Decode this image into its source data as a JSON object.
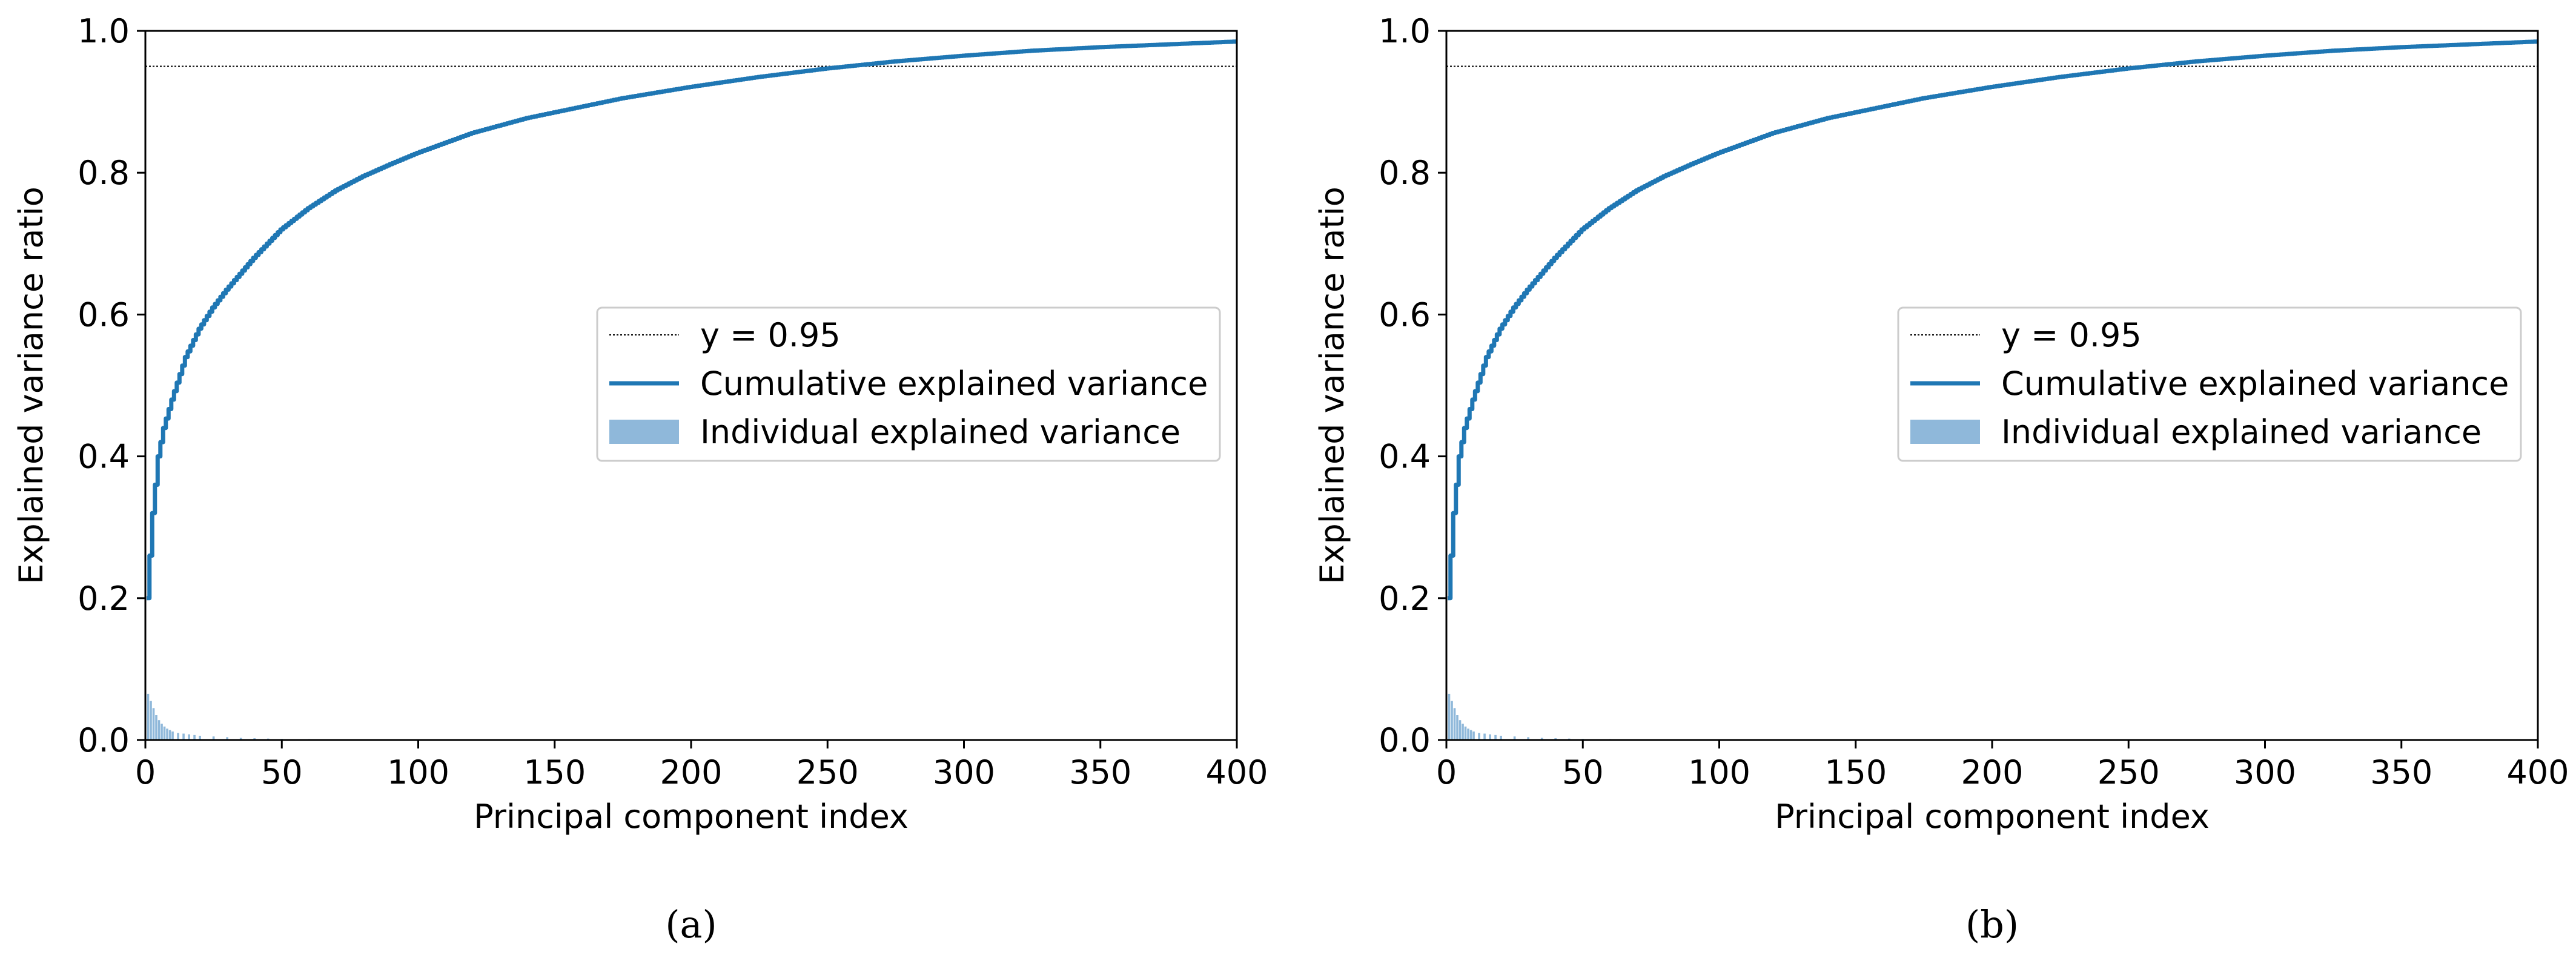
{
  "figure": {
    "panels": [
      {
        "caption": "(a)"
      },
      {
        "caption": "(b)"
      }
    ]
  },
  "colors": {
    "cumulative_line": "#1f77b4",
    "individual_bars": "#8fb8da",
    "threshold_line": "#000000"
  },
  "chart_data": [
    {
      "type": "line",
      "panel_label": "a",
      "title": "",
      "xlabel": "Principal component index",
      "ylabel": "Explained variance ratio",
      "xlim": [
        0,
        400
      ],
      "ylim": [
        0.0,
        1.0
      ],
      "x_ticks": [
        0,
        50,
        100,
        150,
        200,
        250,
        300,
        350,
        400
      ],
      "x_tick_labels": [
        "0",
        "50",
        "100",
        "150",
        "200",
        "250",
        "300",
        "350",
        "400"
      ],
      "y_ticks": [
        0.0,
        0.2,
        0.4,
        0.6,
        0.8,
        1.0
      ],
      "y_tick_labels": [
        "0.0",
        "0.2",
        "0.4",
        "0.6",
        "0.8",
        "1.0"
      ],
      "grid": false,
      "legend_position": "center-right",
      "legend": [
        "y = 0.95",
        "Cumulative explained variance",
        "Individual explained variance"
      ],
      "threshold": {
        "label": "y = 0.95",
        "y": 0.95
      },
      "series": [
        {
          "name": "Cumulative explained variance",
          "kind": "step-line",
          "x": [
            1,
            2,
            3,
            4,
            5,
            7,
            10,
            15,
            20,
            25,
            30,
            40,
            50,
            60,
            70,
            80,
            90,
            100,
            120,
            140,
            150,
            175,
            200,
            225,
            250,
            275,
            300,
            325,
            350,
            375,
            400
          ],
          "y": [
            0.2,
            0.26,
            0.32,
            0.36,
            0.4,
            0.44,
            0.48,
            0.54,
            0.58,
            0.61,
            0.635,
            0.68,
            0.72,
            0.75,
            0.775,
            0.795,
            0.812,
            0.828,
            0.856,
            0.877,
            0.885,
            0.905,
            0.921,
            0.935,
            0.947,
            0.957,
            0.965,
            0.972,
            0.977,
            0.981,
            0.985
          ]
        },
        {
          "name": "Individual explained variance",
          "kind": "bar",
          "x": [
            1,
            2,
            3,
            4,
            5,
            6,
            7,
            8,
            9,
            10,
            12,
            14,
            16,
            18,
            20,
            25,
            30,
            35,
            40,
            45,
            50,
            60,
            70,
            80,
            100,
            150,
            200,
            250,
            300,
            350,
            400
          ],
          "y": [
            0.065,
            0.055,
            0.045,
            0.035,
            0.028,
            0.023,
            0.019,
            0.016,
            0.014,
            0.012,
            0.01,
            0.009,
            0.008,
            0.007,
            0.006,
            0.005,
            0.004,
            0.003,
            0.0025,
            0.002,
            0.0017,
            0.0014,
            0.0012,
            0.001,
            0.0007,
            0.0004,
            0.0003,
            0.0002,
            0.00015,
            0.0001,
            0.0001
          ]
        }
      ]
    },
    {
      "type": "line",
      "panel_label": "b",
      "title": "",
      "xlabel": "Principal component index",
      "ylabel": "Explained variance ratio",
      "xlim": [
        0,
        400
      ],
      "ylim": [
        0.0,
        1.0
      ],
      "x_ticks": [
        0,
        50,
        100,
        150,
        200,
        250,
        300,
        350,
        400
      ],
      "x_tick_labels": [
        "0",
        "50",
        "100",
        "150",
        "200",
        "250",
        "300",
        "350",
        "400"
      ],
      "y_ticks": [
        0.0,
        0.2,
        0.4,
        0.6,
        0.8,
        1.0
      ],
      "y_tick_labels": [
        "0.0",
        "0.2",
        "0.4",
        "0.6",
        "0.8",
        "1.0"
      ],
      "grid": false,
      "legend_position": "center-right",
      "legend": [
        "y = 0.95",
        "Cumulative explained variance",
        "Individual explained variance"
      ],
      "threshold": {
        "label": "y = 0.95",
        "y": 0.95
      },
      "series": [
        {
          "name": "Cumulative explained variance",
          "kind": "step-line",
          "x": [
            1,
            2,
            3,
            4,
            5,
            7,
            10,
            15,
            20,
            25,
            30,
            40,
            50,
            60,
            70,
            80,
            90,
            100,
            120,
            140,
            150,
            175,
            200,
            225,
            250,
            275,
            300,
            325,
            350,
            375,
            400
          ],
          "y": [
            0.2,
            0.26,
            0.32,
            0.36,
            0.4,
            0.44,
            0.48,
            0.54,
            0.58,
            0.61,
            0.635,
            0.68,
            0.72,
            0.75,
            0.775,
            0.795,
            0.812,
            0.828,
            0.856,
            0.877,
            0.885,
            0.905,
            0.921,
            0.935,
            0.947,
            0.957,
            0.965,
            0.972,
            0.977,
            0.981,
            0.985
          ]
        },
        {
          "name": "Individual explained variance",
          "kind": "bar",
          "x": [
            1,
            2,
            3,
            4,
            5,
            6,
            7,
            8,
            9,
            10,
            12,
            14,
            16,
            18,
            20,
            25,
            30,
            35,
            40,
            45,
            50,
            60,
            70,
            80,
            100,
            150,
            200,
            250,
            300,
            350,
            400
          ],
          "y": [
            0.065,
            0.055,
            0.045,
            0.035,
            0.028,
            0.023,
            0.019,
            0.016,
            0.014,
            0.012,
            0.01,
            0.009,
            0.008,
            0.007,
            0.006,
            0.005,
            0.004,
            0.003,
            0.0025,
            0.002,
            0.0017,
            0.0014,
            0.0012,
            0.001,
            0.0007,
            0.0004,
            0.0003,
            0.0002,
            0.00015,
            0.0001,
            0.0001
          ]
        }
      ]
    }
  ]
}
